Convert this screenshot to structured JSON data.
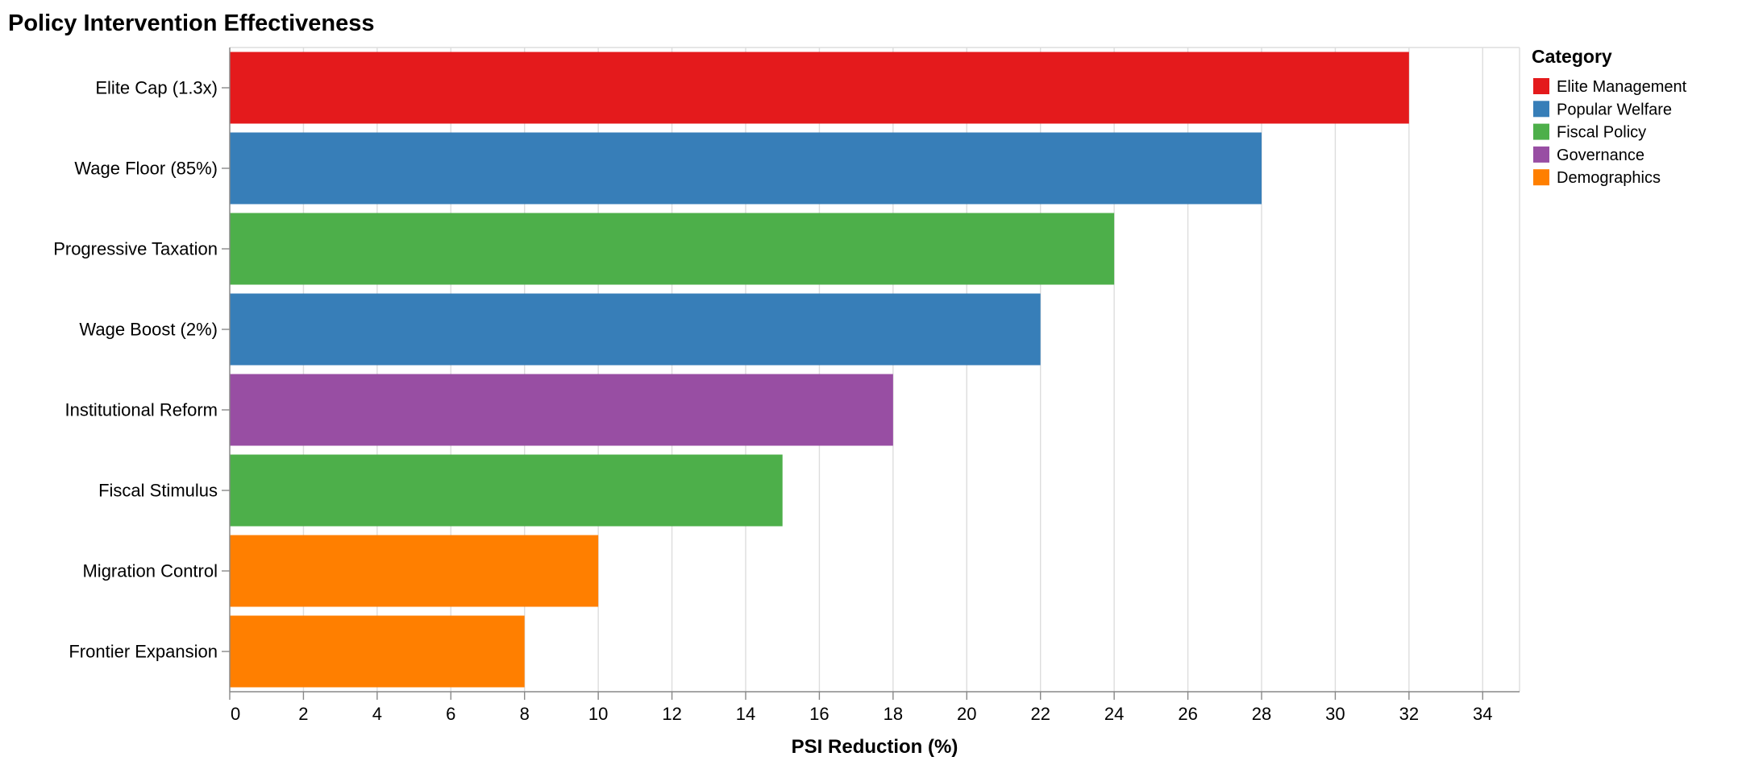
{
  "chart_data": {
    "type": "bar",
    "orientation": "horizontal",
    "title": "Policy Intervention Effectiveness",
    "xlabel": "PSI Reduction (%)",
    "ylabel": "",
    "xlim": [
      0,
      35
    ],
    "xticks": [
      0,
      2,
      4,
      6,
      8,
      10,
      12,
      14,
      16,
      18,
      20,
      22,
      24,
      26,
      28,
      30,
      32,
      34
    ],
    "grid": true,
    "categories": [
      "Elite Cap (1.3x)",
      "Wage Floor (85%)",
      "Progressive Taxation",
      "Wage Boost (2%)",
      "Institutional Reform",
      "Fiscal Stimulus",
      "Migration Control",
      "Frontier Expansion"
    ],
    "values": [
      32,
      28,
      24,
      22,
      18,
      15,
      10,
      8
    ],
    "bar_categories": [
      "Elite Management",
      "Popular Welfare",
      "Fiscal Policy",
      "Popular Welfare",
      "Governance",
      "Fiscal Policy",
      "Demographics",
      "Demographics"
    ],
    "legend": {
      "title": "Category",
      "placement": "right",
      "entries": [
        {
          "label": "Elite Management",
          "color": "#e41a1c"
        },
        {
          "label": "Popular Welfare",
          "color": "#377eb8"
        },
        {
          "label": "Fiscal Policy",
          "color": "#4daf4a"
        },
        {
          "label": "Governance",
          "color": "#984ea3"
        },
        {
          "label": "Demographics",
          "color": "#ff7f00"
        }
      ]
    }
  }
}
